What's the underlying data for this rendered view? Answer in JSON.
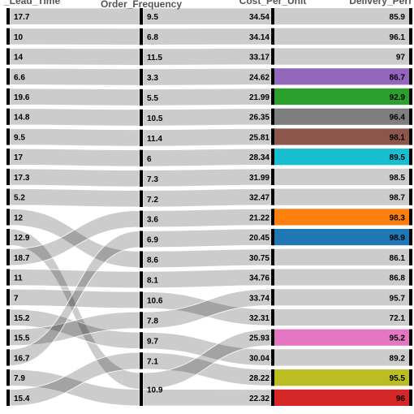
{
  "chart_data": {
    "type": "parallel_categories",
    "dimensions": [
      {
        "name": "_Lead_Time",
        "values": [
          17.7,
          10,
          14,
          6.6,
          19.6,
          14.8,
          9.5,
          17,
          17.3,
          5.2,
          12,
          12.9,
          18.7,
          11,
          7,
          15.2,
          15.5,
          16.7,
          7.9,
          15.4
        ]
      },
      {
        "name": "Order_Frequency",
        "values": [
          9.5,
          6.8,
          11.5,
          3.3,
          5.5,
          10.5,
          11.4,
          6,
          7.3,
          7.2,
          8.6,
          10.9,
          3.6,
          8.1,
          10.6,
          9.7,
          7.8,
          6.9,
          10.9,
          7.1
        ]
      },
      {
        "name": "Cost_Per_Unit",
        "values": [
          34.54,
          34.14,
          33.17,
          24.62,
          21.99,
          26.35,
          25.81,
          28.34,
          31.99,
          32.47,
          30.75,
          22.32,
          21.22,
          34.76,
          32.31,
          30.04,
          33.74,
          20.45,
          25.93,
          28.22
        ]
      },
      {
        "name": "Delivery_Performance",
        "values": [
          85.9,
          96.1,
          97,
          86.7,
          92.9,
          96.4,
          98.1,
          89.5,
          98.5,
          98.7,
          86.1,
          96,
          98.3,
          86.8,
          72.1,
          89.2,
          95.7,
          98.9,
          95.2,
          95.5
        ]
      }
    ],
    "axis_titles": [
      "_Lead_Time",
      "Order_Frequency",
      "Cost_Per_Unit",
      "Delivery_Perf"
    ],
    "category_order": [
      [
        "17.7",
        "10",
        "14",
        "6.6",
        "19.6",
        "14.8",
        "9.5",
        "17",
        "17.3",
        "5.2",
        "12",
        "12.9",
        "18.7",
        "11",
        "7",
        "15.2",
        "15.5",
        "16.7",
        "7.9",
        "15.4"
      ],
      [
        "9.5",
        "6.8",
        "11.5",
        "3.3",
        "5.5",
        "10.5",
        "11.4",
        "6",
        "7.3",
        "7.2",
        "3.6",
        "6.9",
        "8.6",
        "8.1",
        "10.6",
        "7.8",
        "9.7",
        "7.1",
        "10.9"
      ],
      [
        "34.54",
        "34.14",
        "33.17",
        "24.62",
        "21.99",
        "26.35",
        "25.81",
        "28.34",
        "31.99",
        "32.47",
        "21.22",
        "20.45",
        "30.75",
        "34.76",
        "33.74",
        "32.31",
        "25.93",
        "30.04",
        "28.22",
        "22.32"
      ],
      [
        "85.9",
        "96.1",
        "97",
        "86.7",
        "92.9",
        "96.4",
        "98.1",
        "89.5",
        "98.5",
        "98.7",
        "98.3",
        "98.9",
        "86.1",
        "86.8",
        "95.7",
        "72.1",
        "95.2",
        "89.2",
        "95.5",
        "96"
      ]
    ],
    "count_weights": [
      1,
      1,
      1,
      1,
      1,
      1,
      1,
      1,
      1,
      1,
      1,
      1,
      1,
      1,
      1,
      1,
      1,
      1,
      1,
      1,
      1.15,
      1.2,
      1.25,
      1.3,
      1.35,
      1.4,
      1.45,
      1.5
    ],
    "default_color": "#cccccc",
    "highlighted": [
      {
        "category": "86.7",
        "color": "#9467bd"
      },
      {
        "category": "92.9",
        "color": "#2ca02c"
      },
      {
        "category": "96.4",
        "color": "#7f7f7f"
      },
      {
        "category": "98.1",
        "color": "#8c564b"
      },
      {
        "category": "89.5",
        "color": "#17becf"
      },
      {
        "category": "98.3",
        "color": "#ff7f0e"
      },
      {
        "category": "98.9",
        "color": "#1f77b4"
      },
      {
        "category": "95.2",
        "color": "#e377c2"
      },
      {
        "category": "95.5",
        "color": "#bcbd22"
      },
      {
        "category": "96",
        "color": "#d62728"
      }
    ]
  }
}
